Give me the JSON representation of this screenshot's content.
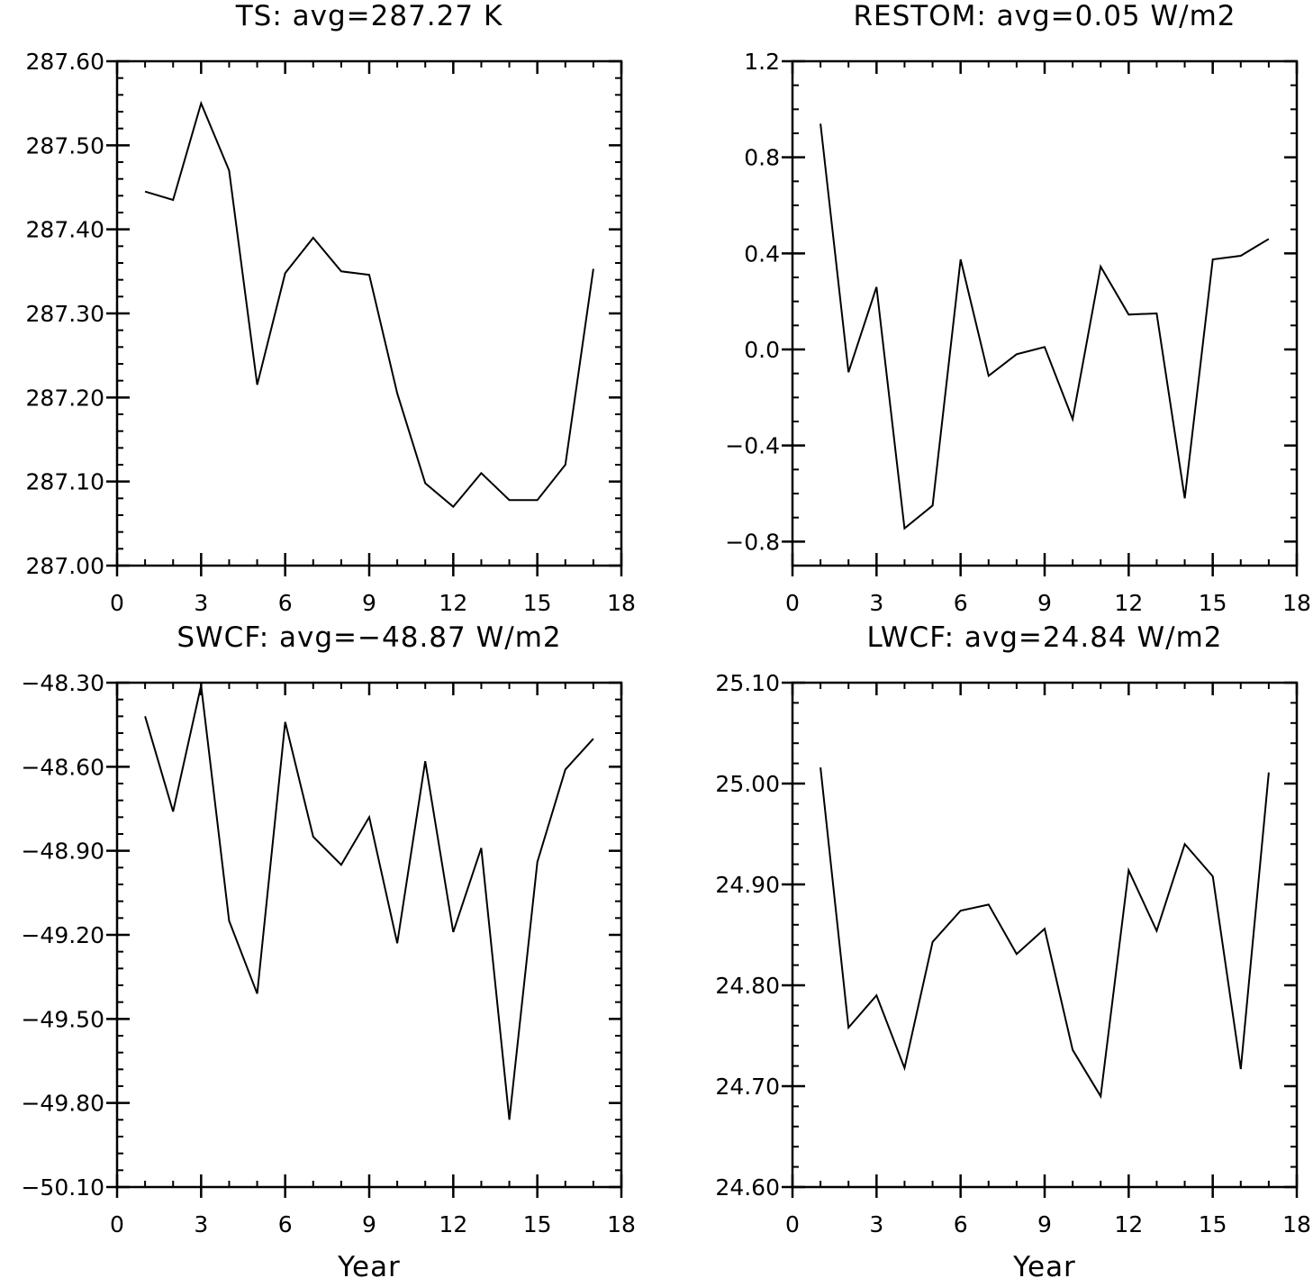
{
  "chart_data": [
    {
      "type": "line",
      "title": "TS: avg=287.27 K",
      "xlabel": "",
      "ylabel": "",
      "xlim": [
        0,
        18
      ],
      "ylim": [
        287.0,
        287.6
      ],
      "x_ticks": [
        "0",
        "3",
        "6",
        "9",
        "12",
        "15",
        "18"
      ],
      "y_ticks": [
        "287.00",
        "287.10",
        "287.20",
        "287.30",
        "287.40",
        "287.50",
        "287.60"
      ],
      "x_tick_values": [
        0,
        3,
        6,
        9,
        12,
        15,
        18
      ],
      "y_tick_values": [
        287.0,
        287.1,
        287.2,
        287.3,
        287.4,
        287.5,
        287.6
      ],
      "y_minor_step": 0.02,
      "grid": false,
      "legend": "none",
      "series": [
        {
          "x": [
            1,
            2,
            3,
            4,
            5,
            6,
            7,
            8,
            9,
            10,
            11,
            12,
            13,
            14,
            15,
            16,
            17
          ],
          "values": [
            287.445,
            287.435,
            287.55,
            287.47,
            287.215,
            287.348,
            287.39,
            287.35,
            287.346,
            287.205,
            287.098,
            287.07,
            287.11,
            287.078,
            287.078,
            287.12,
            287.353
          ]
        }
      ]
    },
    {
      "type": "line",
      "title": "RESTOM: avg=0.05 W/m2",
      "xlabel": "",
      "ylabel": "",
      "xlim": [
        0,
        18
      ],
      "ylim": [
        -0.9,
        1.2
      ],
      "x_ticks": [
        "0",
        "3",
        "6",
        "9",
        "12",
        "15",
        "18"
      ],
      "y_ticks": [
        "−0.8",
        "−0.4",
        "0.0",
        "0.4",
        "0.8",
        "1.2"
      ],
      "x_tick_values": [
        0,
        3,
        6,
        9,
        12,
        15,
        18
      ],
      "y_tick_values": [
        -0.8,
        -0.4,
        0.0,
        0.4,
        0.8,
        1.2
      ],
      "y_minor_step": 0.1,
      "grid": false,
      "legend": "none",
      "series": [
        {
          "x": [
            1,
            2,
            3,
            4,
            5,
            6,
            7,
            8,
            9,
            10,
            11,
            12,
            13,
            14,
            15,
            16,
            17
          ],
          "values": [
            0.94,
            -0.095,
            0.26,
            -0.745,
            -0.65,
            0.375,
            -0.11,
            -0.02,
            0.01,
            -0.29,
            0.345,
            0.145,
            0.15,
            -0.62,
            0.375,
            0.39,
            0.46
          ]
        }
      ]
    },
    {
      "type": "line",
      "title": "SWCF: avg=−48.87 W/m2",
      "xlabel": "Year",
      "ylabel": "",
      "xlim": [
        0,
        18
      ],
      "ylim": [
        -50.1,
        -48.3
      ],
      "x_ticks": [
        "0",
        "3",
        "6",
        "9",
        "12",
        "15",
        "18"
      ],
      "y_ticks": [
        "−50.10",
        "−49.80",
        "−49.50",
        "−49.20",
        "−48.90",
        "−48.60",
        "−48.30"
      ],
      "x_tick_values": [
        0,
        3,
        6,
        9,
        12,
        15,
        18
      ],
      "y_tick_values": [
        -50.1,
        -49.8,
        -49.5,
        -49.2,
        -48.9,
        -48.6,
        -48.3
      ],
      "y_minor_step": 0.06,
      "grid": false,
      "legend": "none",
      "series": [
        {
          "x": [
            1,
            2,
            3,
            4,
            5,
            6,
            7,
            8,
            9,
            10,
            11,
            12,
            13,
            14,
            15,
            16,
            17
          ],
          "values": [
            -48.42,
            -48.76,
            -48.31,
            -49.15,
            -49.41,
            -48.44,
            -48.85,
            -48.95,
            -48.78,
            -49.23,
            -48.58,
            -49.19,
            -48.89,
            -49.86,
            -48.94,
            -48.61,
            -48.5
          ]
        }
      ]
    },
    {
      "type": "line",
      "title": "LWCF: avg=24.84 W/m2",
      "xlabel": "Year",
      "ylabel": "",
      "xlim": [
        0,
        18
      ],
      "ylim": [
        24.6,
        25.1
      ],
      "x_ticks": [
        "0",
        "3",
        "6",
        "9",
        "12",
        "15",
        "18"
      ],
      "y_ticks": [
        "24.60",
        "24.70",
        "24.80",
        "24.90",
        "25.00",
        "25.10"
      ],
      "x_tick_values": [
        0,
        3,
        6,
        9,
        12,
        15,
        18
      ],
      "y_tick_values": [
        24.6,
        24.7,
        24.8,
        24.9,
        25.0,
        25.1
      ],
      "y_minor_step": 0.02,
      "grid": false,
      "legend": "none",
      "series": [
        {
          "x": [
            1,
            2,
            3,
            4,
            5,
            6,
            7,
            8,
            9,
            10,
            11,
            12,
            13,
            14,
            15,
            16,
            17
          ],
          "values": [
            25.016,
            24.758,
            24.79,
            24.718,
            24.843,
            24.874,
            24.88,
            24.831,
            24.856,
            24.736,
            24.69,
            24.914,
            24.854,
            24.94,
            24.908,
            24.717,
            25.011
          ]
        }
      ]
    }
  ]
}
